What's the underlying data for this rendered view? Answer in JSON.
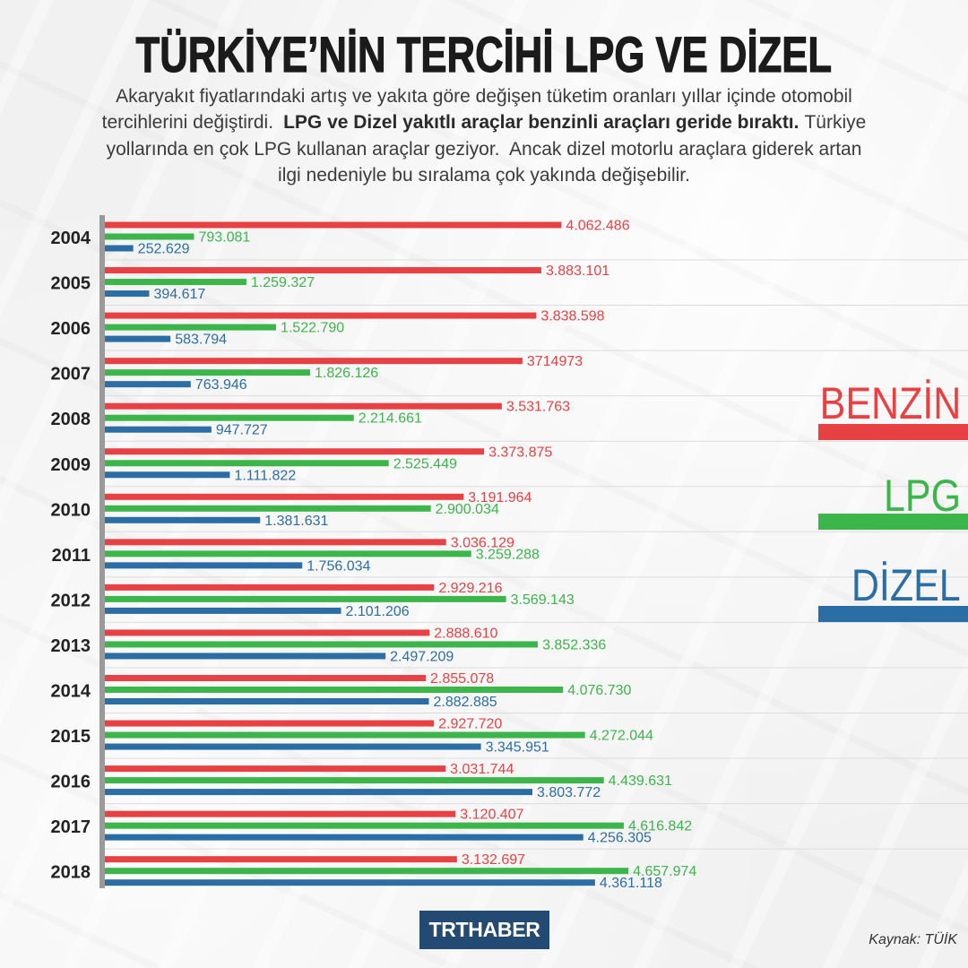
{
  "chart_data": {
    "type": "bar",
    "title": "TÜRKİYE’NİN TERCİHİ LPG VE DİZEL",
    "categories": [
      "2004",
      "2005",
      "2006",
      "2007",
      "2008",
      "2009",
      "2010",
      "2011",
      "2012",
      "2013",
      "2014",
      "2015",
      "2016",
      "2017",
      "2018"
    ],
    "series": [
      {
        "name": "BENZİN",
        "color": "#e84143",
        "values": [
          4062486,
          3883101,
          3838598,
          3714973,
          3531763,
          3373875,
          3191964,
          3036129,
          2929216,
          2888610,
          2855078,
          2927720,
          3031744,
          3120407,
          3132697
        ],
        "labels": [
          "4.062.486",
          "3.883.101",
          "3.838.598",
          "3714973",
          "3.531.763",
          "3.373.875",
          "3.191.964",
          "3.036.129",
          "2.929.216",
          "2.888.610",
          "2.855.078",
          "2.927.720",
          "3.031.744",
          "3.120.407",
          "3.132.697"
        ]
      },
      {
        "name": "LPG",
        "color": "#3cb54b",
        "values": [
          793081,
          1259327,
          1522790,
          1826126,
          2214661,
          2525449,
          2900034,
          3259288,
          3569143,
          3852336,
          4076730,
          4272044,
          4439631,
          4616842,
          4657974
        ],
        "labels": [
          "793.081",
          "1.259.327",
          "1.522.790",
          "1.826.126",
          "2.214.661",
          "2.525.449",
          "2.900.034",
          "3.259.288",
          "3.569.143",
          "3.852.336",
          "4.076.730",
          "4.272.044",
          "4.439.631",
          "4.616.842",
          "4.657.974"
        ]
      },
      {
        "name": "DİZEL",
        "color": "#2b6da5",
        "values": [
          252629,
          394617,
          583794,
          763946,
          947727,
          1111822,
          1381631,
          1756034,
          2101206,
          2497209,
          2882885,
          3345951,
          3803772,
          4256305,
          4361118
        ],
        "labels": [
          "252.629",
          "394.617",
          "583.794",
          "763.946",
          "947.727",
          "1.111.822",
          "1.381.631",
          "1.756.034",
          "2.101.206",
          "2.497.209",
          "2.882.885",
          "3.345.951",
          "3.803.772",
          "4.256.305",
          "4.361.118"
        ]
      }
    ],
    "legend_position": "right",
    "source": "Kaynak: TÜİK"
  },
  "intro": {
    "line1": "Akaryakıt fiyatlarındaki artış ve yakıta göre değişen tüketim oranları yıllar içinde otomobil",
    "line2_start": "tercihlerini değiştirdi.",
    "line2_bold": "LPG ve Dizel yakıtlı araçlar benzinli araçları geride bıraktı.",
    "line2_end": "Türkiye",
    "line3": "yollarında en çok LPG kullanan araçlar geziyor.  Ancak dizel motorlu araçlara giderek artan",
    "line4": "ilgi nedeniyle bu sıralama çok yakında değişebilir."
  },
  "branding": {
    "logo_text": "TRTHABER"
  }
}
